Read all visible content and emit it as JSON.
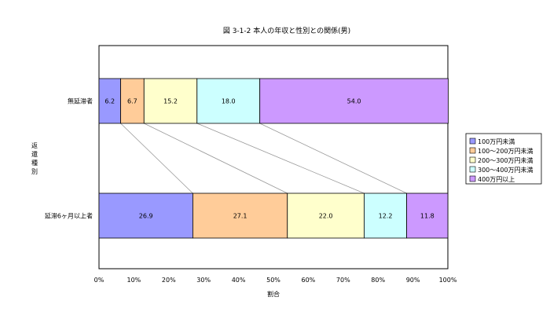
{
  "chart_data": {
    "type": "bar",
    "stacked": "percent",
    "orientation": "horizontal",
    "title": "図 3-1-2  本人の年収と性別との関係(男)",
    "xlabel": "割合",
    "ylabel": "返還種別",
    "xlim": [
      0,
      100
    ],
    "x_ticks": [
      "0%",
      "10%",
      "20%",
      "30%",
      "40%",
      "50%",
      "60%",
      "70%",
      "80%",
      "90%",
      "100%"
    ],
    "categories": [
      "無延滞者",
      "延滞6ヶ月以上者"
    ],
    "series": [
      {
        "name": "100万円未満",
        "values": [
          6.2,
          26.9
        ],
        "color": "#9999ff"
      },
      {
        "name": "100～200万円未満",
        "values": [
          6.7,
          27.1
        ],
        "color": "#ffcc99"
      },
      {
        "name": "200～300万円未満",
        "values": [
          15.2,
          22.0
        ],
        "color": "#ffffcc"
      },
      {
        "name": "300～400万円未満",
        "values": [
          18.0,
          12.2
        ],
        "color": "#ccffff"
      },
      {
        "name": "400万円以上",
        "values": [
          54.0,
          11.8
        ],
        "color": "#cc99ff"
      }
    ],
    "value_labels": [
      [
        "6.2",
        "6.7",
        "15.2",
        "18.0",
        "54.0"
      ],
      [
        "26.9",
        "27.1",
        "22.0",
        "12.2",
        "11.8"
      ]
    ],
    "series_lines": true,
    "grid": false,
    "legend": "right",
    "plot_background": "#ffffff"
  }
}
